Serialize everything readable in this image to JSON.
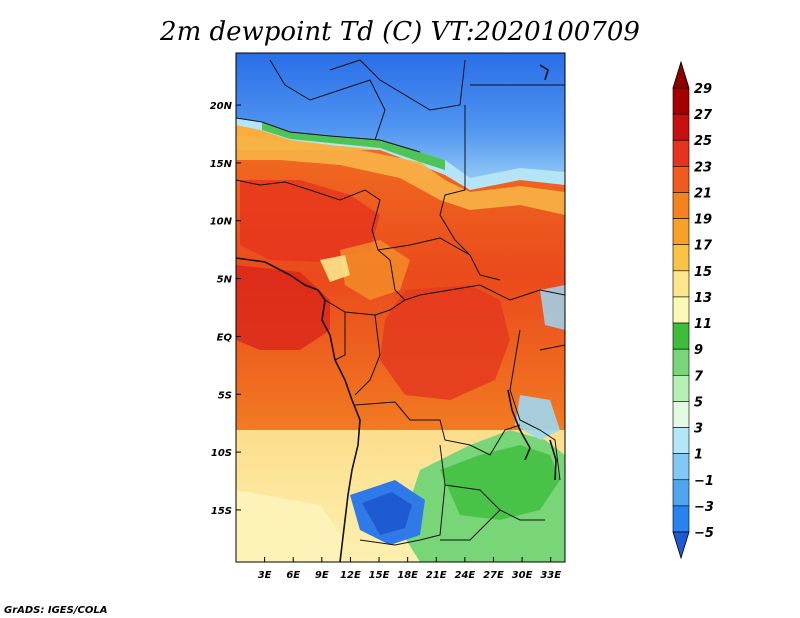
{
  "title": "2m dewpoint Td (C) VT:2020100709",
  "credit": "GrADS: IGES/COLA",
  "map": {
    "variable": "2m dewpoint",
    "units": "C",
    "valid_time": "2020100709",
    "lat_range": [
      -19.5,
      24.5
    ],
    "lon_range": [
      0,
      34.5
    ],
    "lat_labels": [
      {
        "value": 20,
        "text": "20N"
      },
      {
        "value": 15,
        "text": "15N"
      },
      {
        "value": 10,
        "text": "10N"
      },
      {
        "value": 5,
        "text": "5N"
      },
      {
        "value": 0,
        "text": "EQ"
      },
      {
        "value": -5,
        "text": "5S"
      },
      {
        "value": -10,
        "text": "10S"
      },
      {
        "value": -15,
        "text": "15S"
      }
    ],
    "lon_labels": [
      {
        "value": 3,
        "text": "3E"
      },
      {
        "value": 6,
        "text": "6E"
      },
      {
        "value": 9,
        "text": "9E"
      },
      {
        "value": 12,
        "text": "12E"
      },
      {
        "value": 15,
        "text": "15E"
      },
      {
        "value": 18,
        "text": "18E"
      },
      {
        "value": 21,
        "text": "21E"
      },
      {
        "value": 24,
        "text": "24E"
      },
      {
        "value": 27,
        "text": "27E"
      },
      {
        "value": 30,
        "text": "30E"
      },
      {
        "value": 33,
        "text": "33E"
      }
    ]
  },
  "colorbar": {
    "levels": [
      {
        "value": 29,
        "label": "29",
        "color": "#a50000"
      },
      {
        "value": 27,
        "label": "27",
        "color": "#c80f0f"
      },
      {
        "value": 25,
        "label": "25",
        "color": "#e6321e"
      },
      {
        "value": 23,
        "label": "23",
        "color": "#f05a1e"
      },
      {
        "value": 21,
        "label": "21",
        "color": "#f5821e"
      },
      {
        "value": 19,
        "label": "19",
        "color": "#f8a028"
      },
      {
        "value": 17,
        "label": "17",
        "color": "#fac346"
      },
      {
        "value": 15,
        "label": "15",
        "color": "#fde68c"
      },
      {
        "value": 13,
        "label": "13",
        "color": "#fafab4"
      },
      {
        "value": 11,
        "label": "11",
        "color": "#3cbe3c"
      },
      {
        "value": 9,
        "label": "9",
        "color": "#78d678"
      },
      {
        "value": 7,
        "label": "7",
        "color": "#b4f0b4"
      },
      {
        "value": 5,
        "label": "5",
        "color": "#e1fae1"
      },
      {
        "value": 3,
        "label": "3",
        "color": "#b4e6fa"
      },
      {
        "value": 1,
        "label": "1",
        "color": "#82c8f5"
      },
      {
        "value": -1,
        "label": "−1",
        "color": "#50a5f0"
      },
      {
        "value": -3,
        "label": "−3",
        "color": "#2882f0"
      },
      {
        "value": -5,
        "label": "−5",
        "color": "#1e5ad2"
      }
    ],
    "max_color": "#8c0000",
    "min_color": "#1e3cb4"
  }
}
